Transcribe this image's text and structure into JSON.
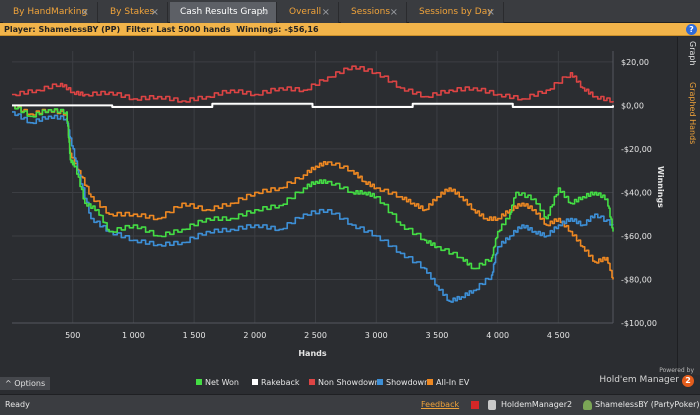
{
  "tabs": [
    {
      "label": "By HandMarking",
      "active": false
    },
    {
      "label": "By Stakes",
      "active": false
    },
    {
      "label": "Cash Results Graph",
      "active": true
    },
    {
      "label": "Overall",
      "active": false
    },
    {
      "label": "Sessions",
      "active": false
    },
    {
      "label": "Sessions by Day",
      "active": false
    }
  ],
  "tab_close": "×",
  "infobar": {
    "player_label": "Player:",
    "player_value": "ShamelessBY (PP)",
    "filter_label": "Filter:",
    "filter_value": "Last 5000 hands",
    "winnings_label": "Winnings:",
    "winnings_value": "-$56,16",
    "help_icon": "?"
  },
  "side_tabs": {
    "graph": "Graph",
    "graphed_hands": "Graphed Hands"
  },
  "options_label": "Options",
  "options_icon": "^",
  "powered": {
    "line1": "Powered by",
    "line2": "Hold'em Manager",
    "badge": "2"
  },
  "status": {
    "ready": "Ready",
    "feedback": "Feedback",
    "db": "HoldemManager2",
    "user": "ShamelessBY (PartyPoker)"
  },
  "chart_data": {
    "type": "line",
    "xlabel": "Hands",
    "ylabel": "Winnings",
    "xlim": [
      0,
      4950
    ],
    "ylim": [
      -100,
      25
    ],
    "x_ticks": [
      500,
      1000,
      1500,
      2000,
      2500,
      3000,
      3500,
      4000,
      4500
    ],
    "x_tick_labels": [
      "500",
      "1 000",
      "1 500",
      "2 000",
      "2 500",
      "3 000",
      "3 500",
      "4 000",
      "4 500"
    ],
    "y_ticks": [
      20,
      0,
      -20,
      -40,
      -60,
      -80,
      -100
    ],
    "y_tick_labels": [
      "$20,00",
      "$0,00",
      "-$20,00",
      "-$40,00",
      "-$60,00",
      "-$80,00",
      "-$100,00"
    ],
    "grid": true,
    "legend_position": "bottom",
    "series": [
      {
        "name": "Net Won",
        "color": "#44dd44",
        "x": [
          0,
          150,
          300,
          450,
          480,
          520,
          600,
          700,
          800,
          1000,
          1200,
          1400,
          1600,
          1800,
          2000,
          2200,
          2400,
          2500,
          2600,
          2800,
          2900,
          3000,
          3200,
          3400,
          3500,
          3700,
          3800,
          3950,
          4000,
          4100,
          4150,
          4300,
          4400,
          4500,
          4600,
          4700,
          4800,
          4900,
          4950
        ],
        "y": [
          0,
          -5,
          -2,
          -3,
          -25,
          -28,
          -45,
          -48,
          -58,
          -55,
          -60,
          -57,
          -52,
          -52,
          -48,
          -46,
          -38,
          -35,
          -35,
          -40,
          -40,
          -42,
          -55,
          -62,
          -65,
          -70,
          -75,
          -70,
          -58,
          -50,
          -40,
          -43,
          -52,
          -38,
          -45,
          -42,
          -40,
          -43,
          -58
        ]
      },
      {
        "name": "Rakeback",
        "color": "#ffffff",
        "x": [
          0,
          4950
        ],
        "y": [
          0,
          0
        ]
      },
      {
        "name": "Non Showdown",
        "color": "#dd4444",
        "x": [
          0,
          200,
          400,
          500,
          600,
          800,
          1000,
          1200,
          1400,
          1600,
          1800,
          2000,
          2200,
          2400,
          2600,
          2800,
          3000,
          3200,
          3400,
          3600,
          3800,
          4000,
          4200,
          4400,
          4600,
          4700,
          4800,
          4950
        ],
        "y": [
          5,
          7,
          10,
          6,
          5,
          6,
          3,
          4,
          2,
          4,
          7,
          5,
          8,
          7,
          13,
          18,
          15,
          8,
          4,
          7,
          8,
          5,
          3,
          7,
          15,
          8,
          4,
          2
        ]
      },
      {
        "name": "Showdown",
        "color": "#3d8fd6",
        "x": [
          0,
          150,
          300,
          450,
          480,
          550,
          650,
          800,
          1000,
          1200,
          1400,
          1600,
          1800,
          2000,
          2200,
          2400,
          2600,
          2800,
          3000,
          3200,
          3400,
          3500,
          3600,
          3700,
          3800,
          3950,
          4000,
          4100,
          4200,
          4300,
          4400,
          4500,
          4600,
          4700,
          4800,
          4950
        ],
        "y": [
          -3,
          -8,
          -5,
          -6,
          -15,
          -32,
          -52,
          -58,
          -62,
          -64,
          -63,
          -58,
          -57,
          -55,
          -57,
          -50,
          -48,
          -55,
          -60,
          -68,
          -75,
          -83,
          -90,
          -88,
          -85,
          -78,
          -65,
          -60,
          -55,
          -58,
          -60,
          -55,
          -52,
          -55,
          -50,
          -55
        ]
      },
      {
        "name": "All-In EV",
        "color": "#ee8822",
        "x": [
          0,
          150,
          300,
          450,
          480,
          550,
          650,
          800,
          1000,
          1200,
          1400,
          1600,
          1800,
          2000,
          2200,
          2400,
          2500,
          2600,
          2800,
          2900,
          3000,
          3200,
          3300,
          3400,
          3500,
          3600,
          3700,
          3800,
          3900,
          4000,
          4100,
          4200,
          4300,
          4400,
          4500,
          4600,
          4700,
          4800,
          4900,
          4950
        ],
        "y": [
          0,
          -4,
          -2,
          -4,
          -22,
          -30,
          -42,
          -50,
          -50,
          -52,
          -45,
          -48,
          -45,
          -40,
          -38,
          -32,
          -28,
          -26,
          -30,
          -35,
          -38,
          -42,
          -45,
          -48,
          -42,
          -38,
          -42,
          -48,
          -52,
          -52,
          -48,
          -45,
          -48,
          -55,
          -52,
          -58,
          -65,
          -72,
          -70,
          -80
        ]
      }
    ]
  }
}
